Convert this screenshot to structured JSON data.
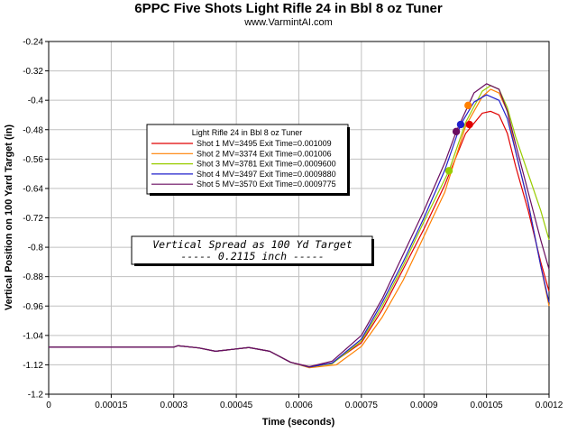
{
  "chart_data": {
    "type": "line",
    "title": "6PPC Five Shots Light Rifle 24 in Bbl  8 oz Tuner",
    "subtitle": "www.VarmintAI.com",
    "xlabel": "Time (seconds)",
    "ylabel": "Vertical Position on 100 Yard Target (in)",
    "xlim": [
      0,
      0.0012
    ],
    "ylim": [
      -1.2,
      -0.24
    ],
    "x_ticks": [
      0,
      0.00015,
      0.0003,
      0.00045,
      0.0006,
      0.00075,
      0.0009,
      0.00105,
      0.0012
    ],
    "x_tick_labels": [
      "0",
      "0.00015",
      "0.0003",
      "0.00045",
      "0.0006",
      "0.00075",
      "0.0009",
      "0.00105",
      "0.0012"
    ],
    "y_ticks": [
      -0.24,
      -0.32,
      -0.4,
      -0.48,
      -0.56,
      -0.64,
      -0.72,
      -0.8,
      -0.88,
      -0.96,
      -1.04,
      -1.12,
      -1.2
    ],
    "y_tick_labels": [
      "-0.24",
      "-0.32",
      "-0.4",
      "-0.48",
      "-0.56",
      "-0.64",
      "-0.72",
      "-0.8",
      "-0.88",
      "-0.96",
      "-1.04",
      "-1.12",
      "-1.2"
    ],
    "grid": true,
    "legend": {
      "title": "Light Rifle 24 in Bbl  8 oz Tuner",
      "placement": "upper-left-center"
    },
    "annotation": {
      "line1": "Vertical Spread as 100 Yd Target",
      "line2": "----- 0.2115 inch -----"
    },
    "series": [
      {
        "name": "Shot 1 MV=3495 Exit Time=0.001009",
        "color": "#e00000",
        "exit": {
          "x": 0.001009,
          "y": -0.466
        },
        "points": [
          [
            0,
            -1.072
          ],
          [
            0.0003,
            -1.072
          ],
          [
            0.00031,
            -1.068
          ],
          [
            0.00036,
            -1.074
          ],
          [
            0.0004,
            -1.083
          ],
          [
            0.00044,
            -1.078
          ],
          [
            0.00048,
            -1.073
          ],
          [
            0.00053,
            -1.083
          ],
          [
            0.00058,
            -1.113
          ],
          [
            0.000625,
            -1.125
          ],
          [
            0.00068,
            -1.115
          ],
          [
            0.00075,
            -1.06
          ],
          [
            0.0008,
            -0.97
          ],
          [
            0.00085,
            -0.86
          ],
          [
            0.0009,
            -0.75
          ],
          [
            0.00095,
            -0.63
          ],
          [
            0.001,
            -0.49
          ],
          [
            0.00104,
            -0.435
          ],
          [
            0.00106,
            -0.43
          ],
          [
            0.00108,
            -0.44
          ],
          [
            0.0011,
            -0.49
          ],
          [
            0.00112,
            -0.58
          ],
          [
            0.00115,
            -0.7
          ],
          [
            0.00118,
            -0.84
          ],
          [
            0.0012,
            -0.92
          ]
        ]
      },
      {
        "name": "Shot 2 MV=3374 Exit Time=0.001006",
        "color": "#ff8000",
        "exit": {
          "x": 0.001006,
          "y": -0.414
        },
        "points": [
          [
            0,
            -1.072
          ],
          [
            0.0003,
            -1.072
          ],
          [
            0.00031,
            -1.068
          ],
          [
            0.00036,
            -1.074
          ],
          [
            0.0004,
            -1.083
          ],
          [
            0.00044,
            -1.078
          ],
          [
            0.00048,
            -1.073
          ],
          [
            0.00053,
            -1.083
          ],
          [
            0.00058,
            -1.113
          ],
          [
            0.000625,
            -1.128
          ],
          [
            0.00069,
            -1.12
          ],
          [
            0.00075,
            -1.07
          ],
          [
            0.0008,
            -0.99
          ],
          [
            0.00085,
            -0.89
          ],
          [
            0.0009,
            -0.77
          ],
          [
            0.00095,
            -0.65
          ],
          [
            0.001,
            -0.47
          ],
          [
            0.00104,
            -0.39
          ],
          [
            0.00106,
            -0.37
          ],
          [
            0.00108,
            -0.38
          ],
          [
            0.0011,
            -0.43
          ],
          [
            0.00112,
            -0.54
          ],
          [
            0.00115,
            -0.68
          ],
          [
            0.00118,
            -0.85
          ],
          [
            0.0012,
            -0.96
          ]
        ]
      },
      {
        "name": "Shot 3 MV=3781 Exit Time=0.0009600",
        "color": "#99cc00",
        "exit": {
          "x": 0.00096,
          "y": -0.592
        },
        "points": [
          [
            0,
            -1.072
          ],
          [
            0.0003,
            -1.072
          ],
          [
            0.00031,
            -1.068
          ],
          [
            0.00036,
            -1.074
          ],
          [
            0.0004,
            -1.083
          ],
          [
            0.00044,
            -1.078
          ],
          [
            0.00048,
            -1.073
          ],
          [
            0.00053,
            -1.083
          ],
          [
            0.00058,
            -1.113
          ],
          [
            0.000625,
            -1.126
          ],
          [
            0.00068,
            -1.117
          ],
          [
            0.00075,
            -1.055
          ],
          [
            0.0008,
            -0.96
          ],
          [
            0.00085,
            -0.85
          ],
          [
            0.0009,
            -0.73
          ],
          [
            0.00096,
            -0.592
          ],
          [
            0.001,
            -0.46
          ],
          [
            0.00104,
            -0.375
          ],
          [
            0.00106,
            -0.36
          ],
          [
            0.00108,
            -0.37
          ],
          [
            0.0011,
            -0.42
          ],
          [
            0.00112,
            -0.5
          ],
          [
            0.00115,
            -0.6
          ],
          [
            0.00118,
            -0.7
          ],
          [
            0.0012,
            -0.78
          ]
        ]
      },
      {
        "name": "Shot 4 MV=3497 Exit Time=0.0009880",
        "color": "#2020cc",
        "exit": {
          "x": 0.000988,
          "y": -0.466
        },
        "points": [
          [
            0,
            -1.072
          ],
          [
            0.0003,
            -1.072
          ],
          [
            0.00031,
            -1.068
          ],
          [
            0.00036,
            -1.074
          ],
          [
            0.0004,
            -1.083
          ],
          [
            0.00044,
            -1.078
          ],
          [
            0.00048,
            -1.073
          ],
          [
            0.00053,
            -1.083
          ],
          [
            0.00058,
            -1.113
          ],
          [
            0.000625,
            -1.126
          ],
          [
            0.00068,
            -1.115
          ],
          [
            0.00075,
            -1.05
          ],
          [
            0.0008,
            -0.95
          ],
          [
            0.00085,
            -0.84
          ],
          [
            0.0009,
            -0.72
          ],
          [
            0.00095,
            -0.59
          ],
          [
            0.000988,
            -0.466
          ],
          [
            0.00102,
            -0.405
          ],
          [
            0.00105,
            -0.385
          ],
          [
            0.00108,
            -0.4
          ],
          [
            0.0011,
            -0.45
          ],
          [
            0.00112,
            -0.54
          ],
          [
            0.00115,
            -0.68
          ],
          [
            0.00118,
            -0.85
          ],
          [
            0.0012,
            -0.95
          ]
        ]
      },
      {
        "name": "Shot 5 MV=3570 Exit Time=0.0009775",
        "color": "#6a0d60",
        "exit": {
          "x": 0.0009775,
          "y": -0.485
        },
        "points": [
          [
            0,
            -1.072
          ],
          [
            0.0003,
            -1.072
          ],
          [
            0.00031,
            -1.068
          ],
          [
            0.00036,
            -1.074
          ],
          [
            0.0004,
            -1.083
          ],
          [
            0.00044,
            -1.078
          ],
          [
            0.00048,
            -1.073
          ],
          [
            0.00053,
            -1.083
          ],
          [
            0.00058,
            -1.113
          ],
          [
            0.000625,
            -1.125
          ],
          [
            0.00068,
            -1.11
          ],
          [
            0.00075,
            -1.04
          ],
          [
            0.0008,
            -0.94
          ],
          [
            0.00085,
            -0.82
          ],
          [
            0.0009,
            -0.7
          ],
          [
            0.00095,
            -0.57
          ],
          [
            0.0009775,
            -0.485
          ],
          [
            0.00102,
            -0.38
          ],
          [
            0.00105,
            -0.355
          ],
          [
            0.00108,
            -0.37
          ],
          [
            0.0011,
            -0.43
          ],
          [
            0.00112,
            -0.52
          ],
          [
            0.00115,
            -0.65
          ],
          [
            0.00118,
            -0.78
          ],
          [
            0.0012,
            -0.86
          ]
        ]
      }
    ]
  }
}
